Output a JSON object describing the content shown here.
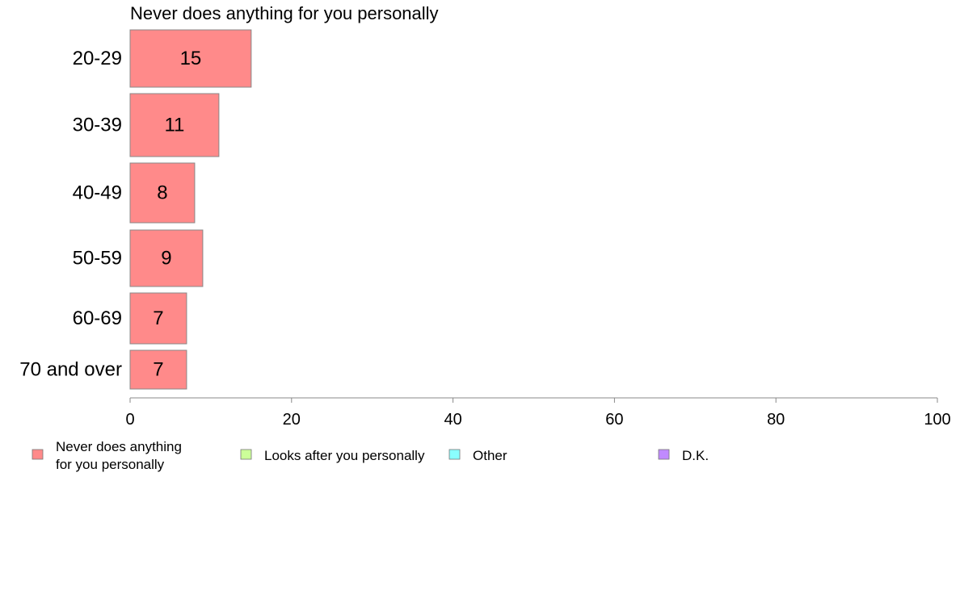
{
  "chart_data": {
    "type": "bar",
    "orientation": "horizontal",
    "title": "Never does anything for you personally",
    "categories": [
      "20-29",
      "30-39",
      "40-49",
      "50-59",
      "60-69",
      "70 and over"
    ],
    "series": [
      {
        "name": "Never does anything for you personally",
        "values": [
          15,
          11,
          8,
          9,
          7,
          7
        ],
        "labels": [
          "15",
          "11",
          "8",
          "9",
          "7",
          "7"
        ],
        "color": "#ff8a8a"
      }
    ],
    "xlim": [
      0,
      100
    ],
    "xticks": [
      0,
      20,
      40,
      60,
      80,
      100
    ],
    "xtick_labels": [
      "0",
      "20",
      "40",
      "60",
      "80",
      "100"
    ],
    "grid": false,
    "legend": {
      "placement": "bottom",
      "entries": [
        {
          "lines": [
            "Never does anything",
            "for you personally"
          ],
          "color": "#ff8a8a"
        },
        {
          "lines": [
            "Looks after you personally"
          ],
          "color": "#ccff99"
        },
        {
          "lines": [
            "Other"
          ],
          "color": "#8affff"
        },
        {
          "lines": [
            "D.K."
          ],
          "color": "#c08aff"
        }
      ]
    },
    "colors": {
      "bar_stroke": "#888888",
      "axis": "#888888"
    }
  }
}
